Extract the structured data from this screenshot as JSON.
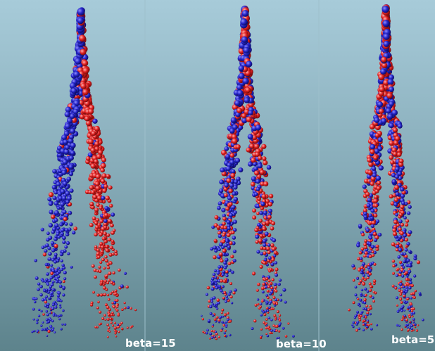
{
  "panels": [
    {
      "label": "beta=15"
    },
    {
      "label": "beta=10"
    },
    {
      "label": "beta=5"
    }
  ]
}
